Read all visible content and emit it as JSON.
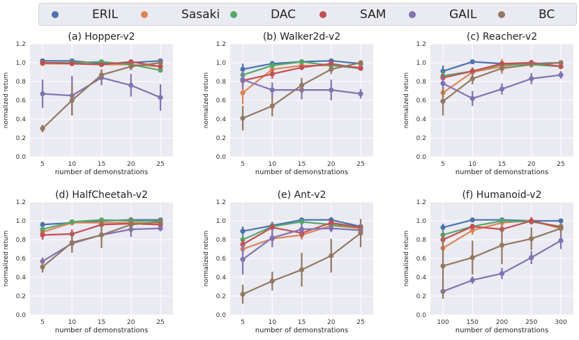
{
  "legend": {
    "items": [
      {
        "name": "ERIL",
        "color": "#4c72b0"
      },
      {
        "name": "Sasaki",
        "color": "#dd8452"
      },
      {
        "name": "DAC",
        "color": "#55a868"
      },
      {
        "name": "SAM",
        "color": "#c44e52"
      },
      {
        "name": "GAIL",
        "color": "#8172b3"
      },
      {
        "name": "BC",
        "color": "#937860"
      }
    ]
  },
  "chart_data": [
    {
      "type": "line",
      "title": "(a) Hopper-v2",
      "xlabel": "number of demonstrations",
      "ylabel": "normalized return",
      "categories": [
        "5",
        "10",
        "15",
        "20",
        "25"
      ],
      "ylim": [
        0,
        1.2
      ],
      "yticks": [
        "0.0",
        "0.2",
        "0.4",
        "0.6",
        "0.8",
        "1.0",
        "1.2"
      ],
      "series": [
        {
          "name": "ERIL",
          "values": [
            1.02,
            1.02,
            0.99,
            1.0,
            1.02
          ],
          "err": [
            0.02,
            0.02,
            0.02,
            0.02,
            0.02
          ]
        },
        {
          "name": "Sasaki",
          "values": [
            0.99,
            0.99,
            0.98,
            0.98,
            0.96
          ],
          "err": [
            0.02,
            0.02,
            0.02,
            0.02,
            0.02
          ]
        },
        {
          "name": "DAC",
          "values": [
            1.0,
            1.0,
            1.01,
            0.98,
            0.92
          ],
          "err": [
            0.02,
            0.02,
            0.02,
            0.02,
            0.02
          ]
        },
        {
          "name": "SAM",
          "values": [
            1.0,
            0.99,
            0.98,
            1.01,
            0.96
          ],
          "err": [
            0.02,
            0.02,
            0.02,
            0.02,
            0.02
          ]
        },
        {
          "name": "GAIL",
          "values": [
            0.67,
            0.65,
            0.84,
            0.76,
            0.63
          ],
          "err": [
            0.15,
            0.21,
            0.08,
            0.12,
            0.14
          ]
        },
        {
          "name": "BC",
          "values": [
            0.3,
            0.6,
            0.87,
            0.96,
            1.0
          ],
          "err": [
            0.04,
            0.16,
            0.06,
            0.04,
            0.02
          ]
        }
      ]
    },
    {
      "type": "line",
      "title": "(b) Walker2d-v2",
      "xlabel": "number of demonstrations",
      "ylabel": "normalized return",
      "categories": [
        "5",
        "10",
        "15",
        "20",
        "25"
      ],
      "ylim": [
        0,
        1.2
      ],
      "yticks": [
        "0.0",
        "0.2",
        "0.4",
        "0.6",
        "0.8",
        "1.0",
        "1.2"
      ],
      "series": [
        {
          "name": "ERIL",
          "values": [
            0.93,
            0.99,
            1.01,
            1.02,
            0.99
          ],
          "err": [
            0.06,
            0.03,
            0.02,
            0.02,
            0.02
          ]
        },
        {
          "name": "Sasaki",
          "values": [
            0.68,
            0.93,
            0.97,
            0.97,
            0.95
          ],
          "err": [
            0.12,
            0.05,
            0.03,
            0.03,
            0.03
          ]
        },
        {
          "name": "DAC",
          "values": [
            0.87,
            0.97,
            1.01,
            0.97,
            0.94
          ],
          "err": [
            0.05,
            0.03,
            0.02,
            0.03,
            0.02
          ]
        },
        {
          "name": "SAM",
          "values": [
            0.81,
            0.88,
            0.95,
            0.99,
            0.94
          ],
          "err": [
            0.05,
            0.05,
            0.03,
            0.03,
            0.02
          ]
        },
        {
          "name": "GAIL",
          "values": [
            0.82,
            0.71,
            0.71,
            0.71,
            0.67
          ],
          "err": [
            0.1,
            0.08,
            0.1,
            0.11,
            0.05
          ]
        },
        {
          "name": "BC",
          "values": [
            0.41,
            0.54,
            0.76,
            0.93,
            1.0
          ],
          "err": [
            0.13,
            0.11,
            0.08,
            0.05,
            0.02
          ]
        }
      ]
    },
    {
      "type": "line",
      "title": "(c) Reacher-v2",
      "xlabel": "number of demonstrations",
      "ylabel": "normalized return",
      "categories": [
        "5",
        "10",
        "15",
        "20",
        "25"
      ],
      "ylim": [
        0,
        1.2
      ],
      "yticks": [
        "0.0",
        "0.2",
        "0.4",
        "0.6",
        "0.8",
        "1.0",
        "1.2"
      ],
      "series": [
        {
          "name": "ERIL",
          "values": [
            0.91,
            1.01,
            0.99,
            0.99,
            1.0
          ],
          "err": [
            0.06,
            0.02,
            0.02,
            0.02,
            0.02
          ]
        },
        {
          "name": "Sasaki",
          "values": [
            0.68,
            0.9,
            0.96,
            1.0,
            0.96
          ],
          "err": [
            0.12,
            0.05,
            0.08,
            0.03,
            0.03
          ]
        },
        {
          "name": "DAC",
          "values": [
            0.86,
            0.91,
            0.98,
            0.98,
            0.96
          ],
          "err": [
            0.05,
            0.03,
            0.03,
            0.03,
            0.02
          ]
        },
        {
          "name": "SAM",
          "values": [
            0.84,
            0.91,
            0.99,
            1.0,
            0.96
          ],
          "err": [
            0.04,
            0.04,
            0.03,
            0.03,
            0.02
          ]
        },
        {
          "name": "GAIL",
          "values": [
            0.78,
            0.62,
            0.72,
            0.83,
            0.87
          ],
          "err": [
            0.08,
            0.08,
            0.06,
            0.06,
            0.04
          ]
        },
        {
          "name": "BC",
          "values": [
            0.59,
            0.83,
            0.94,
            0.98,
            1.0
          ],
          "err": [
            0.15,
            0.06,
            0.04,
            0.03,
            0.02
          ]
        }
      ]
    },
    {
      "type": "line",
      "title": "(d) HalfCheetah-v2",
      "xlabel": "number of demonstrations",
      "ylabel": "normalized return",
      "categories": [
        "5",
        "10",
        "15",
        "20",
        "25"
      ],
      "ylim": [
        0,
        1.2
      ],
      "yticks": [
        "0.0",
        "0.2",
        "0.4",
        "0.6",
        "0.8",
        "1.0",
        "1.2"
      ],
      "series": [
        {
          "name": "ERIL",
          "values": [
            0.96,
            0.98,
            1.0,
            1.01,
            1.01
          ],
          "err": [
            0.03,
            0.02,
            0.02,
            0.02,
            0.02
          ]
        },
        {
          "name": "Sasaki",
          "values": [
            0.88,
            0.98,
            0.98,
            0.98,
            0.98
          ],
          "err": [
            0.04,
            0.03,
            0.03,
            0.02,
            0.02
          ]
        },
        {
          "name": "DAC",
          "values": [
            0.91,
            0.99,
            1.01,
            1.0,
            1.0
          ],
          "err": [
            0.03,
            0.02,
            0.02,
            0.02,
            0.02
          ]
        },
        {
          "name": "SAM",
          "values": [
            0.85,
            0.86,
            0.96,
            0.97,
            0.96
          ],
          "err": [
            0.05,
            0.05,
            0.04,
            0.03,
            0.03
          ]
        },
        {
          "name": "GAIL",
          "values": [
            0.57,
            0.76,
            0.85,
            0.91,
            0.92
          ],
          "err": [
            0.04,
            0.06,
            0.06,
            0.08,
            0.03
          ]
        },
        {
          "name": "BC",
          "values": [
            0.51,
            0.77,
            0.85,
            0.96,
            0.99
          ],
          "err": [
            0.06,
            0.11,
            0.14,
            0.08,
            0.03
          ]
        }
      ]
    },
    {
      "type": "line",
      "title": "(e) Ant-v2",
      "xlabel": "number of demonstrations",
      "ylabel": "normalized return",
      "categories": [
        "5",
        "10",
        "15",
        "20",
        "25"
      ],
      "ylim": [
        0,
        1.2
      ],
      "yticks": [
        "0.0",
        "0.2",
        "0.4",
        "0.6",
        "0.8",
        "1.0",
        "1.2"
      ],
      "series": [
        {
          "name": "ERIL",
          "values": [
            0.89,
            0.95,
            1.01,
            1.01,
            0.94
          ],
          "err": [
            0.05,
            0.04,
            0.02,
            0.03,
            0.03
          ]
        },
        {
          "name": "Sasaki",
          "values": [
            0.7,
            0.81,
            0.85,
            0.95,
            0.92
          ],
          "err": [
            0.06,
            0.06,
            0.05,
            0.04,
            0.04
          ]
        },
        {
          "name": "DAC",
          "values": [
            0.8,
            0.94,
            0.99,
            0.96,
            0.93
          ],
          "err": [
            0.05,
            0.04,
            0.03,
            0.03,
            0.03
          ]
        },
        {
          "name": "SAM",
          "values": [
            0.75,
            0.93,
            0.87,
            0.98,
            0.93
          ],
          "err": [
            0.05,
            0.04,
            0.05,
            0.03,
            0.03
          ]
        },
        {
          "name": "GAIL",
          "values": [
            0.59,
            0.82,
            0.91,
            0.92,
            0.9
          ],
          "err": [
            0.16,
            0.1,
            0.06,
            0.04,
            0.04
          ]
        },
        {
          "name": "BC",
          "values": [
            0.22,
            0.36,
            0.48,
            0.63,
            0.87
          ],
          "err": [
            0.1,
            0.1,
            0.18,
            0.18,
            0.15
          ]
        }
      ]
    },
    {
      "type": "line",
      "title": "(f) Humanoid-v2",
      "xlabel": "number of demonstrations",
      "ylabel": "normalized return",
      "categories": [
        "100",
        "150",
        "200",
        "250",
        "300"
      ],
      "ylim": [
        0,
        1.2
      ],
      "yticks": [
        "0.0",
        "0.2",
        "0.4",
        "0.6",
        "0.8",
        "1.0",
        "1.2"
      ],
      "series": [
        {
          "name": "ERIL",
          "values": [
            0.93,
            1.01,
            1.01,
            1.0,
            1.0
          ],
          "err": [
            0.04,
            0.02,
            0.02,
            0.02,
            0.02
          ]
        },
        {
          "name": "Sasaki",
          "values": [
            0.71,
            0.9,
            0.98,
            1.0,
            0.92
          ],
          "err": [
            0.1,
            0.05,
            0.03,
            0.02,
            0.03
          ]
        },
        {
          "name": "DAC",
          "values": [
            0.85,
            0.94,
            1.0,
            0.99,
            0.94
          ],
          "err": [
            0.05,
            0.03,
            0.02,
            0.02,
            0.02
          ]
        },
        {
          "name": "SAM",
          "values": [
            0.8,
            0.94,
            0.91,
            1.0,
            0.93
          ],
          "err": [
            0.05,
            0.03,
            0.04,
            0.04,
            0.03
          ]
        },
        {
          "name": "GAIL",
          "values": [
            0.25,
            0.37,
            0.44,
            0.61,
            0.79
          ],
          "err": [
            0.02,
            0.04,
            0.06,
            0.07,
            0.09
          ]
        },
        {
          "name": "BC",
          "values": [
            0.52,
            0.61,
            0.74,
            0.81,
            0.92
          ],
          "err": [
            0.35,
            0.18,
            0.2,
            0.12,
            0.06
          ]
        }
      ]
    }
  ]
}
